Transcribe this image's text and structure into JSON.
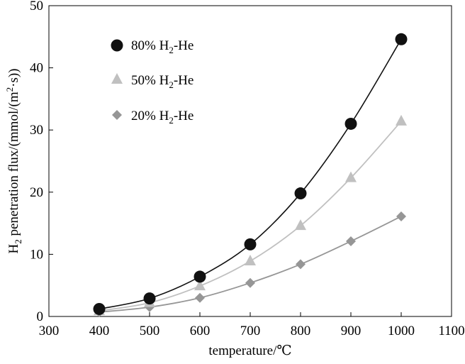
{
  "colors": {
    "background": "#ffffff",
    "axis": "#000000",
    "series_80": "#111111",
    "series_50": "#c0c0c0",
    "series_20": "#969696"
  },
  "chart_data": {
    "type": "line",
    "title": "",
    "xlabel": "temperature/℃",
    "ylabel_main": "H",
    "ylabel_sub": "2",
    "ylabel_rest": " penetration flux/(mmol/(m",
    "ylabel_sup": "2",
    "ylabel_end": "·s))",
    "xlim": [
      300,
      1100
    ],
    "ylim": [
      0,
      50
    ],
    "xticks": [
      300,
      400,
      500,
      600,
      700,
      800,
      900,
      1000,
      1100
    ],
    "yticks": [
      0,
      10,
      20,
      30,
      40,
      50
    ],
    "grid": false,
    "legend_position": "top-left",
    "x": [
      400,
      500,
      600,
      700,
      800,
      900,
      1000
    ],
    "series": [
      {
        "id": "80",
        "name_prefix": "80% H",
        "name_sub": "2",
        "name_suffix": "-He",
        "marker": "circle",
        "color": "#111111",
        "values": [
          1.2,
          2.9,
          6.4,
          11.6,
          19.8,
          31.0,
          44.6
        ]
      },
      {
        "id": "50",
        "name_prefix": "50% H",
        "name_sub": "2",
        "name_suffix": "-He",
        "marker": "triangle",
        "color": "#c0c0c0",
        "values": [
          0.9,
          2.2,
          4.9,
          8.9,
          14.6,
          22.3,
          31.4
        ]
      },
      {
        "id": "20",
        "name_prefix": "20% H",
        "name_sub": "2",
        "name_suffix": "-He",
        "marker": "diamond",
        "color": "#969696",
        "values": [
          0.7,
          1.5,
          3.0,
          5.4,
          8.4,
          12.1,
          16.1
        ]
      }
    ]
  }
}
